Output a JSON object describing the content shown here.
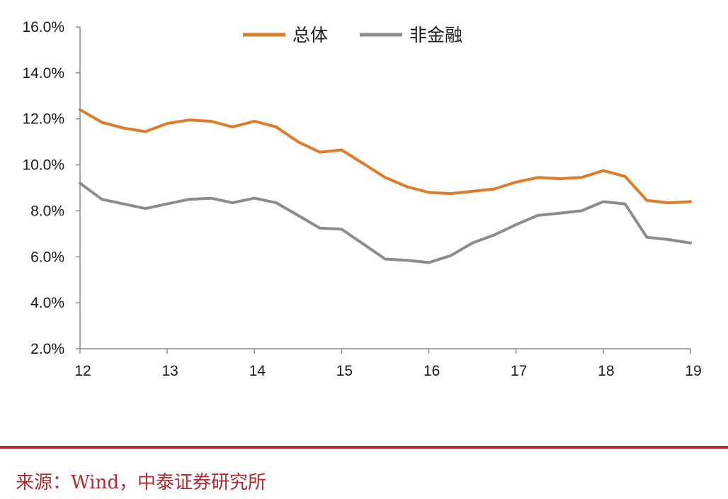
{
  "chart_data": {
    "type": "line",
    "title": "",
    "xlabel": "",
    "ylabel": "",
    "x_ticks": [
      "12",
      "13",
      "14",
      "15",
      "16",
      "17",
      "18",
      "19"
    ],
    "y_ticks": [
      "2.0%",
      "4.0%",
      "6.0%",
      "8.0%",
      "10.0%",
      "12.0%",
      "14.0%",
      "16.0%"
    ],
    "xlim": [
      12,
      19
    ],
    "ylim": [
      2,
      16
    ],
    "legend_position": "top-center",
    "grid": false,
    "x": [
      12.0,
      12.25,
      12.5,
      12.75,
      13.0,
      13.25,
      13.5,
      13.75,
      14.0,
      14.25,
      14.5,
      14.75,
      15.0,
      15.25,
      15.5,
      15.75,
      16.0,
      16.25,
      16.5,
      16.75,
      17.0,
      17.25,
      17.5,
      17.75,
      18.0,
      18.25,
      18.5,
      18.75,
      19.0
    ],
    "series": [
      {
        "name": "总体",
        "color": "#e07b2a",
        "values": [
          12.4,
          11.85,
          11.6,
          11.45,
          11.8,
          11.95,
          11.9,
          11.65,
          11.9,
          11.65,
          11.0,
          10.55,
          10.65,
          10.05,
          9.45,
          9.05,
          8.8,
          8.75,
          8.85,
          8.95,
          9.25,
          9.45,
          9.4,
          9.45,
          9.75,
          9.5,
          8.45,
          8.35,
          8.4
        ]
      },
      {
        "name": "非金融",
        "color": "#8c8c8c",
        "values": [
          9.2,
          8.5,
          8.3,
          8.1,
          8.3,
          8.5,
          8.55,
          8.35,
          8.55,
          8.35,
          7.8,
          7.25,
          7.2,
          6.55,
          5.9,
          5.85,
          5.75,
          6.05,
          6.6,
          6.95,
          7.4,
          7.8,
          7.9,
          8.0,
          8.4,
          8.3,
          6.85,
          6.75,
          6.6
        ]
      }
    ]
  },
  "source_text": "来源：Wind，中泰证券研究所"
}
